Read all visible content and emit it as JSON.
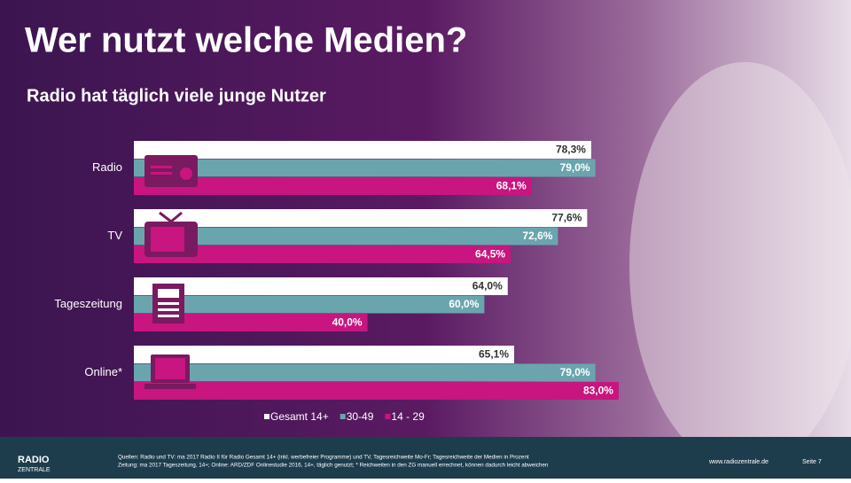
{
  "header": {
    "title": "Wer nutzt welche Medien?",
    "subtitle": "Radio hat täglich viele junge Nutzer"
  },
  "chart_data": {
    "type": "hbar",
    "categories": [
      "Radio",
      "TV",
      "Tageszeitung",
      "Online*"
    ],
    "xlim": [
      0,
      100
    ],
    "series": [
      {
        "name": "Gesamt 14+",
        "color": "#ffffff",
        "values": [
          78.3,
          77.6,
          64.0,
          65.1
        ],
        "value_labels": [
          "78,3%",
          "77,6%",
          "64,0%",
          "65,1%"
        ]
      },
      {
        "name": "30-49",
        "color": "#6aa5ae",
        "values": [
          79.0,
          72.6,
          60.0,
          79.0
        ],
        "value_labels": [
          "79,0%",
          "72,6%",
          "60,0%",
          "79,0%"
        ]
      },
      {
        "name": "14 - 29",
        "color": "#c8157f",
        "values": [
          68.1,
          64.5,
          40.0,
          83.0
        ],
        "value_labels": [
          "68,1%",
          "64,5%",
          "40,0%",
          "83,0%"
        ]
      }
    ]
  },
  "footer": {
    "logo_top": "RADIO",
    "logo_bottom": "ZENTRALE",
    "source_line1": "Quellen: Radio und TV: ma 2017 Radio II für Radio Gesamt 14+ (inkl. werbefreier Programme) und TV, Tagesreichweite Mo-Fr; Tagesreichweite der Medien in Prozent",
    "source_line2": "Zeitung: ma 2017 Tageszeitung, 14+; Online: ARD/ZDF Onlinestudie 2016, 14+, täglich genutzt; * Reichweiten in den ZG manuell errechnet, können dadurch leicht abweichen",
    "url": "www.radiozentrale.de",
    "page": "Seite 7"
  }
}
